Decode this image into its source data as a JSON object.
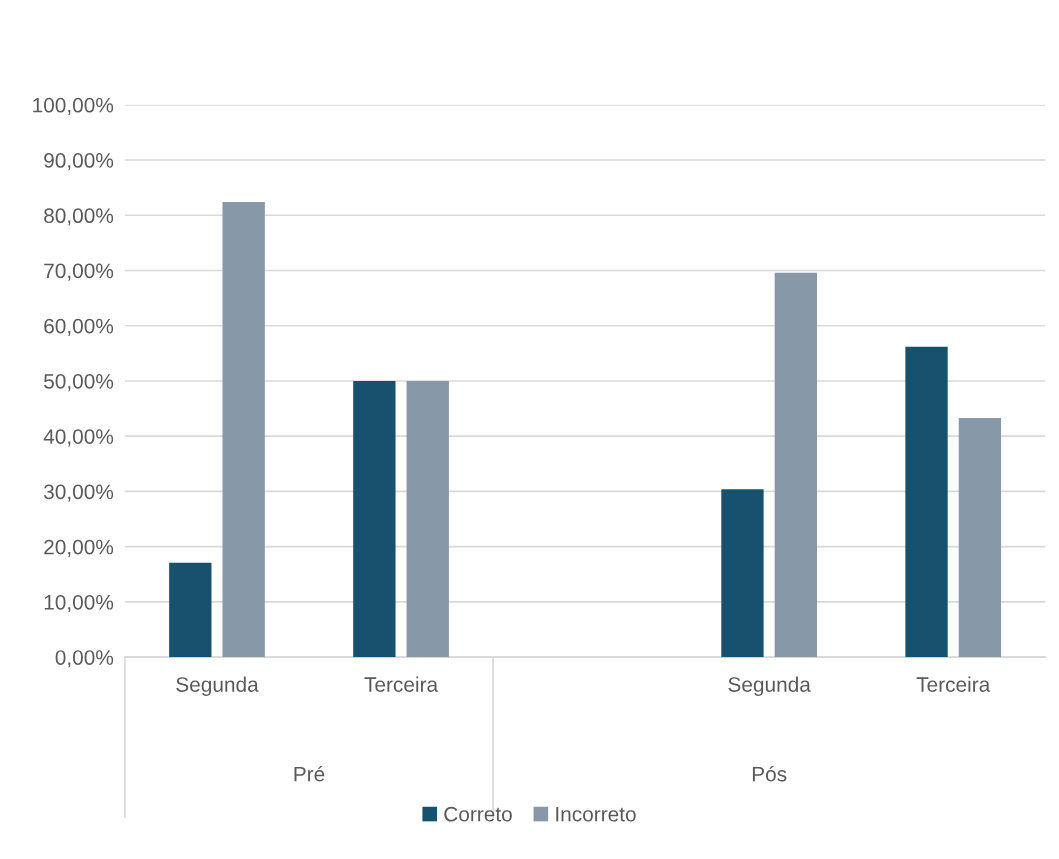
{
  "chart_data": {
    "type": "bar",
    "categories": [
      "Segunda",
      "Terceira",
      null,
      "Segunda",
      "Terceira"
    ],
    "series": [
      {
        "name": "Correto",
        "color": "#17516e",
        "values": [
          17.1,
          50,
          null,
          30.4,
          56.2
        ]
      },
      {
        "name": "Incorreto",
        "color": "#8798a8",
        "values": [
          82.4,
          50,
          null,
          69.6,
          43.3
        ]
      }
    ],
    "annotations": [
      "Pré",
      "Pós"
    ],
    "ylim": [
      0,
      100
    ],
    "yticks": [
      {
        "value": 0,
        "label": "0,00%"
      },
      {
        "value": 10,
        "label": "10,00%"
      },
      {
        "value": 20,
        "label": "20,00%"
      },
      {
        "value": 30,
        "label": "30,00%"
      },
      {
        "value": 40,
        "label": "40,00%"
      },
      {
        "value": 50,
        "label": "50,00%"
      },
      {
        "value": 60,
        "label": "60,00%"
      },
      {
        "value": 70,
        "label": "70,00%"
      },
      {
        "value": 80,
        "label": "80,00%"
      },
      {
        "value": 90,
        "label": "90,00%"
      },
      {
        "value": 100,
        "label": "100,00%"
      }
    ],
    "grid": "y",
    "legend": "bottom"
  }
}
